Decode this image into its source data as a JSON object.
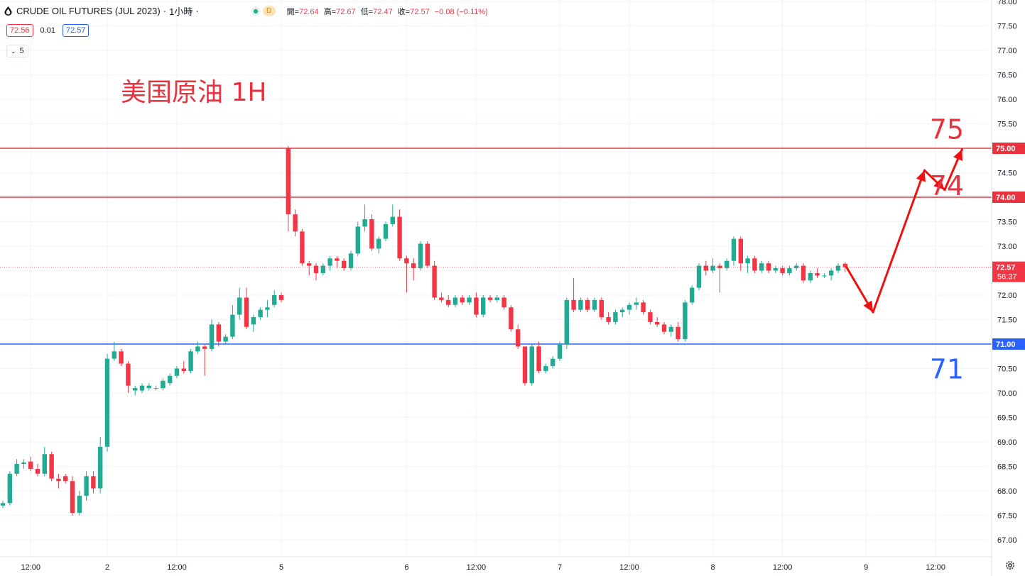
{
  "header": {
    "symbol": "CRUDE OIL FUTURES (JUL 2023)",
    "separator": "·",
    "interval": "1小時",
    "market_badge": "D",
    "ohlc": [
      {
        "label": "開",
        "value": "72.64"
      },
      {
        "label": "高",
        "value": "72.67"
      },
      {
        "label": "低",
        "value": "72.47"
      },
      {
        "label": "收",
        "value": "72.57"
      }
    ],
    "change": "−0.08 (−0.11%)"
  },
  "trade": {
    "sell": "72.56",
    "spread": "0.01",
    "buy": "72.57"
  },
  "indicator_toggle": {
    "count": "5"
  },
  "colors": {
    "up": "#22ab94",
    "down": "#f23645",
    "red_line": "#e8333f",
    "blue_line": "#2962ff",
    "arrow": "#ee1111",
    "grid": "#f0f3fa"
  },
  "chart_data": {
    "type": "candlestick",
    "title": "美国原油 1H",
    "ylim": [
      67.0,
      78.0
    ],
    "y_ticks": [
      "78.00",
      "77.50",
      "77.00",
      "76.50",
      "76.00",
      "75.50",
      "75.00",
      "74.50",
      "74.00",
      "73.50",
      "73.00",
      "72.50",
      "72.00",
      "71.50",
      "71.00",
      "70.50",
      "70.00",
      "69.50",
      "69.00",
      "68.50",
      "68.00",
      "67.50",
      "67.00"
    ],
    "x_ticks": [
      {
        "label": "12:00",
        "index": 4
      },
      {
        "label": "2",
        "index": 15
      },
      {
        "label": "12:00",
        "index": 25
      },
      {
        "label": "5",
        "index": 40
      },
      {
        "label": "6",
        "index": 58
      },
      {
        "label": "12:00",
        "index": 68
      },
      {
        "label": "7",
        "index": 80
      },
      {
        "label": "12:00",
        "index": 90
      },
      {
        "label": "8",
        "index": 102
      },
      {
        "label": "12:00",
        "index": 112
      },
      {
        "label": "9",
        "index": 124
      },
      {
        "label": "12:00",
        "index": 134
      }
    ],
    "candles": [
      [
        67.7,
        67.8,
        67.65,
        67.75
      ],
      [
        67.75,
        68.4,
        67.7,
        68.35
      ],
      [
        68.35,
        68.65,
        68.3,
        68.55
      ],
      [
        68.55,
        68.65,
        68.45,
        68.58
      ],
      [
        68.6,
        68.7,
        68.4,
        68.45
      ],
      [
        68.45,
        68.55,
        68.3,
        68.35
      ],
      [
        68.35,
        68.9,
        68.3,
        68.75
      ],
      [
        68.75,
        68.8,
        68.2,
        68.25
      ],
      [
        68.25,
        68.35,
        68.05,
        68.2
      ],
      [
        68.3,
        68.35,
        68.15,
        68.2
      ],
      [
        68.2,
        68.3,
        67.5,
        67.55
      ],
      [
        67.55,
        68.0,
        67.5,
        67.9
      ],
      [
        67.9,
        68.4,
        67.8,
        68.3
      ],
      [
        68.3,
        68.4,
        67.95,
        68.05
      ],
      [
        68.05,
        69.1,
        67.95,
        68.9
      ],
      [
        68.9,
        70.8,
        68.8,
        70.7
      ],
      [
        70.7,
        71.05,
        70.65,
        70.85
      ],
      [
        70.85,
        70.9,
        70.55,
        70.6
      ],
      [
        70.6,
        70.65,
        70.0,
        70.15
      ],
      [
        70.05,
        70.15,
        69.95,
        70.1
      ],
      [
        70.05,
        70.2,
        70.0,
        70.15
      ],
      [
        70.1,
        70.2,
        70.05,
        70.15
      ],
      [
        70.1,
        70.15,
        70.05,
        70.1
      ],
      [
        70.1,
        70.3,
        70.05,
        70.25
      ],
      [
        70.2,
        70.4,
        70.15,
        70.35
      ],
      [
        70.35,
        70.55,
        70.3,
        70.5
      ],
      [
        70.5,
        70.65,
        70.4,
        70.45
      ],
      [
        70.45,
        70.9,
        70.4,
        70.85
      ],
      [
        70.85,
        71.05,
        70.8,
        70.95
      ],
      [
        70.95,
        71.0,
        70.35,
        70.9
      ],
      [
        70.9,
        71.5,
        70.85,
        71.4
      ],
      [
        71.4,
        71.45,
        70.95,
        71.05
      ],
      [
        71.05,
        71.2,
        71.0,
        71.15
      ],
      [
        71.15,
        71.8,
        71.1,
        71.6
      ],
      [
        71.6,
        72.15,
        71.5,
        71.95
      ],
      [
        71.95,
        72.15,
        71.3,
        71.35
      ],
      [
        71.4,
        71.6,
        71.25,
        71.55
      ],
      [
        71.55,
        71.75,
        71.5,
        71.7
      ],
      [
        71.7,
        71.9,
        71.55,
        71.75
      ],
      [
        71.8,
        72.1,
        71.75,
        72.0
      ],
      [
        72.0,
        72.05,
        71.85,
        71.9
      ],
      [
        75.0,
        75.05,
        73.3,
        73.65
      ],
      [
        73.65,
        73.75,
        73.2,
        73.3
      ],
      [
        73.3,
        73.35,
        72.6,
        72.65
      ],
      [
        72.65,
        72.7,
        72.4,
        72.6
      ],
      [
        72.6,
        72.65,
        72.3,
        72.45
      ],
      [
        72.45,
        72.65,
        72.4,
        72.6
      ],
      [
        72.6,
        72.8,
        72.5,
        72.75
      ],
      [
        72.75,
        72.8,
        72.55,
        72.7
      ],
      [
        72.7,
        72.75,
        72.5,
        72.55
      ],
      [
        72.55,
        72.9,
        72.5,
        72.85
      ],
      [
        72.85,
        73.5,
        72.8,
        73.4
      ],
      [
        73.4,
        73.85,
        73.3,
        73.55
      ],
      [
        73.55,
        73.65,
        72.9,
        72.95
      ],
      [
        72.95,
        73.2,
        72.85,
        73.15
      ],
      [
        73.15,
        73.5,
        73.1,
        73.45
      ],
      [
        73.45,
        73.85,
        73.4,
        73.6
      ],
      [
        73.6,
        73.75,
        72.7,
        72.75
      ],
      [
        72.75,
        72.8,
        72.05,
        72.65
      ],
      [
        72.65,
        72.75,
        72.3,
        72.55
      ],
      [
        72.55,
        73.1,
        72.5,
        73.05
      ],
      [
        73.05,
        73.1,
        72.55,
        72.6
      ],
      [
        72.6,
        72.7,
        71.9,
        71.95
      ],
      [
        71.95,
        72.05,
        71.85,
        71.9
      ],
      [
        71.9,
        72.0,
        71.75,
        71.8
      ],
      [
        71.8,
        72.0,
        71.75,
        71.95
      ],
      [
        71.95,
        72.0,
        71.8,
        71.85
      ],
      [
        71.85,
        72.0,
        71.8,
        71.95
      ],
      [
        71.95,
        72.05,
        71.55,
        71.6
      ],
      [
        71.6,
        72.0,
        71.55,
        71.95
      ],
      [
        71.95,
        72.0,
        71.85,
        71.9
      ],
      [
        71.9,
        72.0,
        71.85,
        71.95
      ],
      [
        71.95,
        72.0,
        71.7,
        71.75
      ],
      [
        71.75,
        71.8,
        71.25,
        71.3
      ],
      [
        71.3,
        71.4,
        70.9,
        70.95
      ],
      [
        70.95,
        70.95,
        70.15,
        70.2
      ],
      [
        70.2,
        71.0,
        70.15,
        70.95
      ],
      [
        70.95,
        71.05,
        70.4,
        70.45
      ],
      [
        70.45,
        70.6,
        70.4,
        70.55
      ],
      [
        70.55,
        70.75,
        70.5,
        70.7
      ],
      [
        70.7,
        71.05,
        70.65,
        71.0
      ],
      [
        71.0,
        71.95,
        70.9,
        71.9
      ],
      [
        71.9,
        72.35,
        71.65,
        71.7
      ],
      [
        71.7,
        71.95,
        71.65,
        71.9
      ],
      [
        71.9,
        71.95,
        71.65,
        71.7
      ],
      [
        71.7,
        71.95,
        71.65,
        71.9
      ],
      [
        71.9,
        71.95,
        71.5,
        71.55
      ],
      [
        71.55,
        71.65,
        71.4,
        71.45
      ],
      [
        71.45,
        71.7,
        71.4,
        71.65
      ],
      [
        71.65,
        71.75,
        71.55,
        71.7
      ],
      [
        71.7,
        71.85,
        71.6,
        71.8
      ],
      [
        71.8,
        71.95,
        71.7,
        71.85
      ],
      [
        71.85,
        71.9,
        71.6,
        71.65
      ],
      [
        71.65,
        71.7,
        71.4,
        71.45
      ],
      [
        71.45,
        71.55,
        71.35,
        71.4
      ],
      [
        71.4,
        71.45,
        71.2,
        71.25
      ],
      [
        71.25,
        71.4,
        71.15,
        71.35
      ],
      [
        71.35,
        71.45,
        71.05,
        71.1
      ],
      [
        71.1,
        71.9,
        71.05,
        71.85
      ],
      [
        71.85,
        72.2,
        71.8,
        72.15
      ],
      [
        72.15,
        72.65,
        72.1,
        72.6
      ],
      [
        72.6,
        72.7,
        72.4,
        72.5
      ],
      [
        72.5,
        72.75,
        72.45,
        72.6
      ],
      [
        72.6,
        72.65,
        72.05,
        72.55
      ],
      [
        72.55,
        72.75,
        72.5,
        72.7
      ],
      [
        72.7,
        73.2,
        72.6,
        73.15
      ],
      [
        73.15,
        73.2,
        72.5,
        72.65
      ],
      [
        72.65,
        72.8,
        72.45,
        72.75
      ],
      [
        72.75,
        72.8,
        72.45,
        72.5
      ],
      [
        72.5,
        72.7,
        72.45,
        72.65
      ],
      [
        72.65,
        72.7,
        72.45,
        72.5
      ],
      [
        72.5,
        72.6,
        72.45,
        72.55
      ],
      [
        72.55,
        72.6,
        72.4,
        72.45
      ],
      [
        72.45,
        72.6,
        72.4,
        72.55
      ],
      [
        72.55,
        72.65,
        72.5,
        72.6
      ],
      [
        72.6,
        72.65,
        72.25,
        72.3
      ],
      [
        72.3,
        72.5,
        72.25,
        72.45
      ],
      [
        72.45,
        72.55,
        72.35,
        72.4
      ],
      [
        72.4,
        72.45,
        72.35,
        72.4
      ],
      [
        72.4,
        72.55,
        72.3,
        72.5
      ],
      [
        72.5,
        72.65,
        72.45,
        72.6
      ],
      [
        72.64,
        72.67,
        72.47,
        72.57
      ]
    ],
    "hlines": [
      {
        "value": 75.0,
        "label": "75.00",
        "color": "#e8333f"
      },
      {
        "value": 74.0,
        "label": "74.00",
        "color": "#e8333f"
      },
      {
        "value": 71.0,
        "label": "71.00",
        "color": "#2962ff"
      }
    ],
    "current_price": {
      "value": 72.57,
      "label": "72.57",
      "countdown": "56:37"
    },
    "annotations": [
      {
        "text": "75",
        "index": 135.6,
        "value": 75.4,
        "color": "#e8333f"
      },
      {
        "text": "74",
        "index": 135.6,
        "value": 74.25,
        "color": "#e8333f"
      },
      {
        "text": "71",
        "index": 135.6,
        "value": 70.5,
        "color": "#2962ff"
      }
    ],
    "projection_path": [
      {
        "index": 121.2,
        "value": 72.57
      },
      {
        "index": 125.0,
        "value": 71.65
      },
      {
        "index": 132.4,
        "value": 74.55
      },
      {
        "index": 135.3,
        "value": 74.15
      },
      {
        "index": 137.8,
        "value": 74.98
      }
    ]
  }
}
